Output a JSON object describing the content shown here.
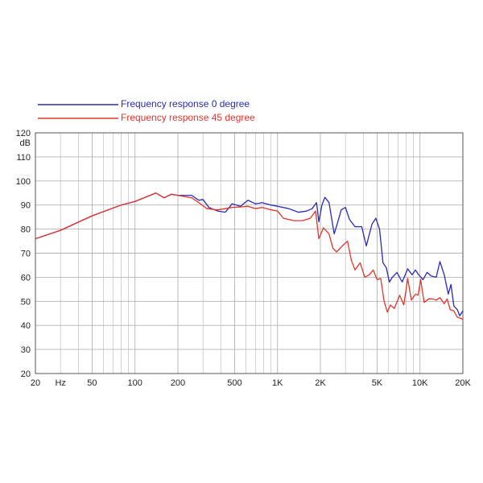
{
  "colors": {
    "series_0": "#2a2ab4",
    "series_45": "#e0352b",
    "grid": "#b4b4b4",
    "frame": "#555555"
  },
  "legend": {
    "series_0_label": "Frequency response 0 degree",
    "series_45_label": "Frequency response 45 degree"
  },
  "chart_data": {
    "type": "line",
    "xscale": "log",
    "xlim": [
      20,
      20000
    ],
    "ylim": [
      20,
      120
    ],
    "ylabel": "dB",
    "xlabel": "",
    "grid": true,
    "legend_position": "top-left",
    "x_tick_labels": [
      {
        "value": 20,
        "label": "20"
      },
      {
        "value": 30,
        "label": "Hz"
      },
      {
        "value": 50,
        "label": "50"
      },
      {
        "value": 100,
        "label": "100"
      },
      {
        "value": 200,
        "label": "200"
      },
      {
        "value": 500,
        "label": "500"
      },
      {
        "value": 1000,
        "label": "1K"
      },
      {
        "value": 2000,
        "label": "2K"
      },
      {
        "value": 5000,
        "label": "5K"
      },
      {
        "value": 10000,
        "label": "10K"
      },
      {
        "value": 20000,
        "label": "20K"
      }
    ],
    "y_tick_labels": [
      {
        "value": 120,
        "label": "120"
      },
      {
        "value": 110,
        "label": "110"
      },
      {
        "value": 100,
        "label": "100"
      },
      {
        "value": 90,
        "label": "90"
      },
      {
        "value": 80,
        "label": "80"
      },
      {
        "value": 70,
        "label": "70"
      },
      {
        "value": 60,
        "label": "60"
      },
      {
        "value": 50,
        "label": "50"
      },
      {
        "value": 40,
        "label": "40"
      },
      {
        "value": 30,
        "label": "30"
      },
      {
        "value": 20,
        "label": "20"
      }
    ],
    "series": [
      {
        "name": "Frequency response 0 degree",
        "color": "#2a2ab4",
        "points": [
          [
            20,
            76
          ],
          [
            30,
            79.5
          ],
          [
            50,
            85.5
          ],
          [
            80,
            90
          ],
          [
            100,
            91.5
          ],
          [
            140,
            95
          ],
          [
            160,
            93
          ],
          [
            180,
            94.5
          ],
          [
            200,
            94
          ],
          [
            250,
            94
          ],
          [
            280,
            92
          ],
          [
            300,
            92.3
          ],
          [
            330,
            89
          ],
          [
            380,
            87.5
          ],
          [
            430,
            87
          ],
          [
            480,
            90.5
          ],
          [
            550,
            89.5
          ],
          [
            620,
            92
          ],
          [
            700,
            90.5
          ],
          [
            780,
            91
          ],
          [
            900,
            90
          ],
          [
            1000,
            89.5
          ],
          [
            1200,
            88.5
          ],
          [
            1400,
            87
          ],
          [
            1600,
            87.5
          ],
          [
            1750,
            88.5
          ],
          [
            1880,
            91
          ],
          [
            1950,
            83
          ],
          [
            2050,
            90
          ],
          [
            2150,
            93.2
          ],
          [
            2300,
            91
          ],
          [
            2500,
            78
          ],
          [
            2650,
            83
          ],
          [
            2800,
            88
          ],
          [
            3000,
            89
          ],
          [
            3200,
            84
          ],
          [
            3500,
            81
          ],
          [
            3900,
            81
          ],
          [
            4200,
            73
          ],
          [
            4600,
            82
          ],
          [
            4900,
            84.5
          ],
          [
            5200,
            80
          ],
          [
            5500,
            66
          ],
          [
            5800,
            64
          ],
          [
            6100,
            58
          ],
          [
            6400,
            60
          ],
          [
            6900,
            62
          ],
          [
            7500,
            58
          ],
          [
            8200,
            63.5
          ],
          [
            8800,
            61
          ],
          [
            9300,
            63
          ],
          [
            9800,
            61
          ],
          [
            10500,
            59
          ],
          [
            11200,
            62
          ],
          [
            12000,
            60.5
          ],
          [
            13000,
            60
          ],
          [
            13800,
            66.5
          ],
          [
            14800,
            61
          ],
          [
            15800,
            53
          ],
          [
            16500,
            57
          ],
          [
            17300,
            48
          ],
          [
            18300,
            46.5
          ],
          [
            19000,
            44
          ],
          [
            20000,
            46
          ]
        ]
      },
      {
        "name": "Frequency response 45 degree",
        "color": "#e0352b",
        "points": [
          [
            20,
            76
          ],
          [
            30,
            79.5
          ],
          [
            50,
            85.5
          ],
          [
            80,
            90
          ],
          [
            100,
            91.5
          ],
          [
            140,
            95
          ],
          [
            160,
            93
          ],
          [
            180,
            94.5
          ],
          [
            200,
            94
          ],
          [
            250,
            93
          ],
          [
            280,
            91
          ],
          [
            320,
            88.5
          ],
          [
            380,
            88
          ],
          [
            430,
            88.5
          ],
          [
            480,
            89
          ],
          [
            550,
            89.2
          ],
          [
            620,
            89.5
          ],
          [
            700,
            88.5
          ],
          [
            780,
            89
          ],
          [
            900,
            88
          ],
          [
            1000,
            87.5
          ],
          [
            1100,
            84.5
          ],
          [
            1300,
            83.5
          ],
          [
            1500,
            83.5
          ],
          [
            1700,
            84.5
          ],
          [
            1850,
            87.5
          ],
          [
            1950,
            76
          ],
          [
            2100,
            80.5
          ],
          [
            2300,
            78
          ],
          [
            2450,
            72
          ],
          [
            2600,
            70.5
          ],
          [
            2850,
            73
          ],
          [
            3100,
            75
          ],
          [
            3300,
            67
          ],
          [
            3500,
            63
          ],
          [
            3800,
            66
          ],
          [
            4100,
            60
          ],
          [
            4400,
            61
          ],
          [
            4700,
            63
          ],
          [
            5000,
            59
          ],
          [
            5300,
            59.5
          ],
          [
            5600,
            50
          ],
          [
            5900,
            45.5
          ],
          [
            6200,
            48.5
          ],
          [
            6600,
            47
          ],
          [
            7200,
            52.5
          ],
          [
            7700,
            48.5
          ],
          [
            8200,
            59.5
          ],
          [
            8700,
            50.5
          ],
          [
            9300,
            53
          ],
          [
            9700,
            52.5
          ],
          [
            10100,
            59
          ],
          [
            10700,
            49.5
          ],
          [
            11500,
            51
          ],
          [
            12200,
            51
          ],
          [
            13000,
            50.5
          ],
          [
            13800,
            51.5
          ],
          [
            14800,
            49
          ],
          [
            15500,
            51
          ],
          [
            16300,
            46.5
          ],
          [
            17300,
            46
          ],
          [
            18200,
            43.5
          ],
          [
            19200,
            43
          ],
          [
            20000,
            42.5
          ]
        ]
      }
    ]
  }
}
